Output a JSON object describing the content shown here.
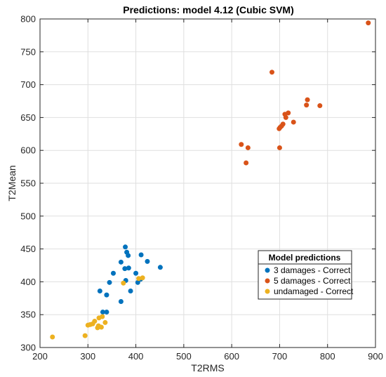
{
  "chart_data": {
    "type": "scatter",
    "title": "Predictions: model 4.12 (Cubic SVM)",
    "xlabel": "T2RMS",
    "ylabel": "T2Mean",
    "xlim": [
      200,
      900
    ],
    "ylim": [
      300,
      800
    ],
    "x_ticks": [
      "200",
      "300",
      "400",
      "500",
      "600",
      "700",
      "800",
      "900"
    ],
    "y_ticks": [
      "300",
      "350",
      "400",
      "450",
      "500",
      "550",
      "600",
      "650",
      "700",
      "750",
      "800"
    ],
    "grid": true,
    "legend_title": "Model predictions",
    "legend_position": "lower-right",
    "series": [
      {
        "name": "3 damages - Correct",
        "color": "#0072BD",
        "points": [
          [
            378,
            453
          ],
          [
            381,
            445
          ],
          [
            384,
            440
          ],
          [
            369,
            430
          ],
          [
            411,
            441
          ],
          [
            424,
            431
          ],
          [
            451,
            422
          ],
          [
            385,
            421
          ],
          [
            377,
            420
          ],
          [
            353,
            413
          ],
          [
            400,
            413
          ],
          [
            345,
            399
          ],
          [
            379,
            402
          ],
          [
            410,
            404
          ],
          [
            404,
            399
          ],
          [
            325,
            386
          ],
          [
            389,
            386
          ],
          [
            339,
            380
          ],
          [
            369,
            370
          ],
          [
            331,
            354
          ],
          [
            339,
            354
          ]
        ]
      },
      {
        "name": "5 damages - Correct",
        "color": "#D95319",
        "points": [
          [
            885,
            794
          ],
          [
            684,
            719
          ],
          [
            758,
            677
          ],
          [
            756,
            669
          ],
          [
            784,
            668
          ],
          [
            718,
            657
          ],
          [
            711,
            655
          ],
          [
            713,
            650
          ],
          [
            729,
            643
          ],
          [
            707,
            640
          ],
          [
            704,
            637
          ],
          [
            701,
            635
          ],
          [
            699,
            633
          ],
          [
            620,
            609
          ],
          [
            634,
            604
          ],
          [
            700,
            604
          ],
          [
            630,
            581
          ]
        ]
      },
      {
        "name": "undamaged - Correct",
        "color": "#EDB120",
        "points": [
          [
            414,
            406
          ],
          [
            406,
            405
          ],
          [
            374,
            398
          ],
          [
            330,
            347
          ],
          [
            323,
            345
          ],
          [
            314,
            340
          ],
          [
            336,
            338
          ],
          [
            310,
            336
          ],
          [
            305,
            335
          ],
          [
            300,
            334
          ],
          [
            328,
            331
          ],
          [
            320,
            330
          ],
          [
            294,
            318
          ],
          [
            226,
            316
          ],
          [
            322,
            333
          ]
        ]
      }
    ]
  }
}
